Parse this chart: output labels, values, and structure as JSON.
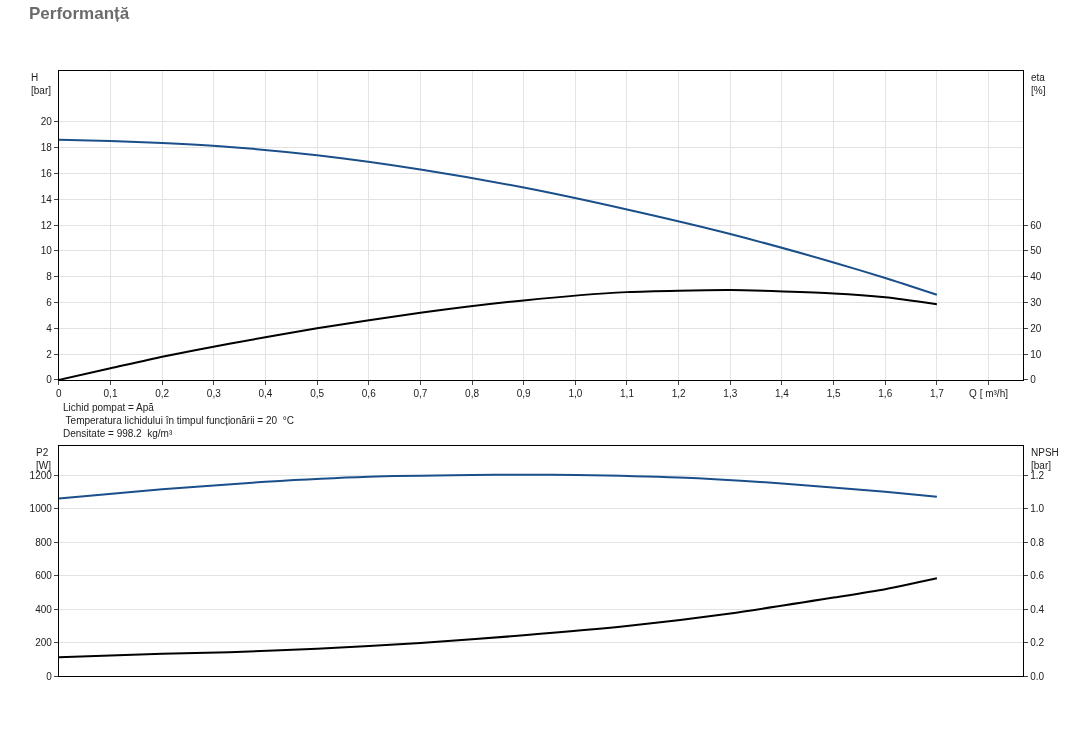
{
  "chart_data": [
    {
      "type": "line",
      "title": "Performanță",
      "xlabel": null,
      "ylabel": "H [bar]",
      "y2label": "eta [%]",
      "xlim": [
        0,
        1.867
      ],
      "xticks": [
        {
          "value": 0,
          "label": "0"
        },
        {
          "value": 0.1,
          "label": "0,1"
        },
        {
          "value": 0.2,
          "label": "0,2"
        },
        {
          "value": 0.3,
          "label": "0,3"
        },
        {
          "value": 0.4,
          "label": "0,4"
        },
        {
          "value": 0.5,
          "label": "0,5"
        },
        {
          "value": 0.6,
          "label": "0,6"
        },
        {
          "value": 0.7,
          "label": "0,7"
        },
        {
          "value": 0.8,
          "label": "0,8"
        },
        {
          "value": 0.9,
          "label": "0,9"
        },
        {
          "value": 1.0,
          "label": "1,0"
        },
        {
          "value": 1.1,
          "label": "1,1"
        },
        {
          "value": 1.2,
          "label": "1,2"
        },
        {
          "value": 1.3,
          "label": "1,3"
        },
        {
          "value": 1.4,
          "label": "1,4"
        },
        {
          "value": 1.5,
          "label": "1,5"
        },
        {
          "value": 1.6,
          "label": "1,6"
        },
        {
          "value": 1.7,
          "label": "1,7"
        },
        {
          "value": 1.8,
          "label": "Q [ m³/h]"
        }
      ],
      "ylim": [
        0,
        23.9
      ],
      "yticks": [
        0,
        2,
        4,
        6,
        8,
        10,
        12,
        14,
        16,
        18,
        20
      ],
      "y2lim": [
        0,
        119.5
      ],
      "y2ticks": [
        0,
        10,
        20,
        30,
        40,
        50,
        60
      ],
      "grid": true,
      "series": [
        {
          "color": "#1a4f8a",
          "x": [
            0,
            0.1,
            0.2,
            0.33,
            0.5,
            0.7,
            0.9,
            1.1,
            1.3,
            1.5,
            1.6,
            1.7
          ],
          "values": [
            18.6,
            18.5,
            18.35,
            18.05,
            17.4,
            16.3,
            14.9,
            13.2,
            11.3,
            9.1,
            7.9,
            6.6
          ]
        },
        {
          "color": "#000000",
          "axis": "y2",
          "x": [
            0,
            0.1,
            0.2,
            0.33,
            0.5,
            0.7,
            0.9,
            1.1,
            1.3,
            1.5,
            1.6,
            1.7
          ],
          "values": [
            0,
            4.5,
            9,
            14,
            20,
            26,
            30.8,
            34,
            34.8,
            33.5,
            32,
            29.3
          ]
        }
      ],
      "annotations": [
        "Lichid pompat = Apă",
        " Temperatura lichidului în timpul funcționării = 20  °C",
        "Densitate = 998.2  kg/m³"
      ]
    },
    {
      "type": "line",
      "ylabel": "P2 [W]",
      "y2label": "NPSH [bar]",
      "xlim": [
        0,
        1.867
      ],
      "tick_labels": "y",
      "ylim": [
        0,
        1371
      ],
      "yticks": [
        0,
        200,
        400,
        600,
        800,
        1000,
        1200
      ],
      "y2lim": [
        0,
        1.371
      ],
      "y2ticks": [
        {
          "value": 0,
          "label": "0.0"
        },
        {
          "value": 0.2,
          "label": "0.2"
        },
        {
          "value": 0.4,
          "label": "0.4"
        },
        {
          "value": 0.6,
          "label": "0.6"
        },
        {
          "value": 0.8,
          "label": "0.8"
        },
        {
          "value": 1.0,
          "label": "1.0"
        },
        {
          "value": 1.2,
          "label": "1.2"
        }
      ],
      "grid": true,
      "series": [
        {
          "color": "#1a4f8a",
          "x": [
            0,
            0.2,
            0.4,
            0.6,
            0.8,
            0.9,
            1.0,
            1.2,
            1.4,
            1.6,
            1.7
          ],
          "values": [
            1060,
            1115,
            1160,
            1190,
            1200,
            1202,
            1200,
            1185,
            1150,
            1100,
            1070
          ]
        },
        {
          "color": "#000000",
          "axis": "y2",
          "x": [
            0,
            0.2,
            0.33,
            0.5,
            0.7,
            0.9,
            1.1,
            1.3,
            1.5,
            1.6,
            1.7
          ],
          "values": [
            0.115,
            0.135,
            0.145,
            0.165,
            0.2,
            0.245,
            0.3,
            0.375,
            0.47,
            0.52,
            0.585
          ]
        }
      ]
    }
  ]
}
